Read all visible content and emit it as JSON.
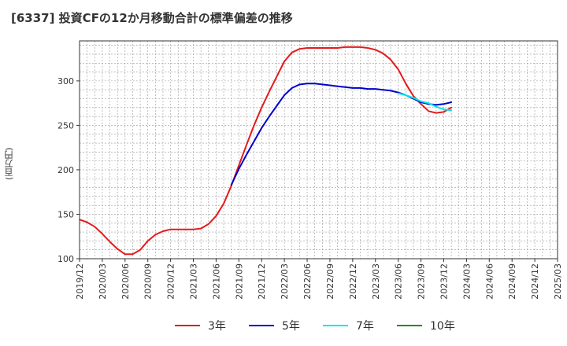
{
  "chart_data": {
    "type": "line",
    "title": "[6337]  投資CFの12か月移動合計の標準偏差の推移",
    "ylabel": "(百万円)",
    "xlabel": "",
    "ylim": [
      100,
      345
    ],
    "yticks": [
      100,
      150,
      200,
      250,
      300
    ],
    "x_categories": [
      "2019/12",
      "2020/03",
      "2020/06",
      "2020/09",
      "2020/12",
      "2021/03",
      "2021/06",
      "2021/09",
      "2021/12",
      "2022/03",
      "2022/06",
      "2022/09",
      "2022/12",
      "2023/03",
      "2023/06",
      "2023/09",
      "2023/12",
      "2024/03",
      "2024/06",
      "2024/09",
      "2024/12",
      "2025/03"
    ],
    "x_month_index_range": [
      0,
      63
    ],
    "grid": true,
    "legend_position": "bottom",
    "series": [
      {
        "name": "3年",
        "color": "#e41a1c",
        "points": [
          [
            0,
            144
          ],
          [
            1,
            141
          ],
          [
            2,
            136
          ],
          [
            3,
            128
          ],
          [
            4,
            119
          ],
          [
            5,
            111
          ],
          [
            6,
            105
          ],
          [
            7,
            105
          ],
          [
            8,
            110
          ],
          [
            9,
            120
          ],
          [
            10,
            127
          ],
          [
            11,
            131
          ],
          [
            12,
            133
          ],
          [
            13,
            133
          ],
          [
            14,
            133
          ],
          [
            15,
            133
          ],
          [
            16,
            134
          ],
          [
            17,
            139
          ],
          [
            18,
            148
          ],
          [
            19,
            162
          ],
          [
            20,
            182
          ],
          [
            21,
            205
          ],
          [
            22,
            228
          ],
          [
            23,
            250
          ],
          [
            24,
            270
          ],
          [
            25,
            288
          ],
          [
            26,
            305
          ],
          [
            27,
            322
          ],
          [
            28,
            332
          ],
          [
            29,
            336
          ],
          [
            30,
            337
          ],
          [
            31,
            337
          ],
          [
            32,
            337
          ],
          [
            33,
            337
          ],
          [
            34,
            337
          ],
          [
            35,
            338
          ],
          [
            36,
            338
          ],
          [
            37,
            338
          ],
          [
            38,
            337
          ],
          [
            39,
            335
          ],
          [
            40,
            331
          ],
          [
            41,
            324
          ],
          [
            42,
            313
          ],
          [
            43,
            297
          ],
          [
            44,
            283
          ],
          [
            45,
            274
          ],
          [
            46,
            266
          ],
          [
            47,
            264
          ],
          [
            48,
            265
          ],
          [
            49,
            270
          ]
        ]
      },
      {
        "name": "5年",
        "color": "#0000cd",
        "points": [
          [
            20,
            183
          ],
          [
            21,
            201
          ],
          [
            22,
            217
          ],
          [
            23,
            232
          ],
          [
            24,
            247
          ],
          [
            25,
            260
          ],
          [
            26,
            272
          ],
          [
            27,
            284
          ],
          [
            28,
            292
          ],
          [
            29,
            296
          ],
          [
            30,
            297
          ],
          [
            31,
            297
          ],
          [
            32,
            296
          ],
          [
            33,
            295
          ],
          [
            34,
            294
          ],
          [
            35,
            293
          ],
          [
            36,
            292
          ],
          [
            37,
            292
          ],
          [
            38,
            291
          ],
          [
            39,
            291
          ],
          [
            40,
            290
          ],
          [
            41,
            289
          ],
          [
            42,
            287
          ],
          [
            43,
            284
          ],
          [
            44,
            280
          ],
          [
            45,
            276
          ],
          [
            46,
            274
          ],
          [
            47,
            273
          ],
          [
            48,
            274
          ],
          [
            49,
            276
          ]
        ]
      },
      {
        "name": "7年",
        "color": "#00e5ee",
        "points": [
          [
            42,
            286
          ],
          [
            43,
            284
          ],
          [
            44,
            281
          ],
          [
            45,
            277
          ],
          [
            46,
            275
          ],
          [
            47,
            271
          ],
          [
            48,
            268
          ],
          [
            49,
            267
          ]
        ]
      },
      {
        "name": "10年",
        "color": "#228b22",
        "points": []
      }
    ]
  }
}
